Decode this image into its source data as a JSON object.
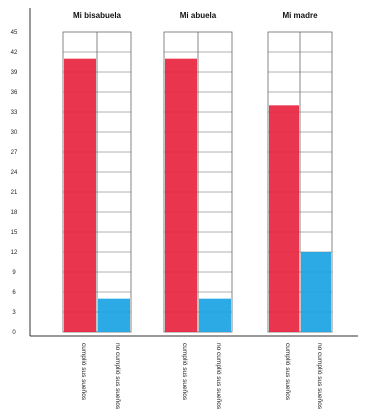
{
  "chart_data": {
    "type": "bar",
    "ylim": [
      0,
      45
    ],
    "yticks": [
      "0",
      "3",
      "6",
      "9",
      "12",
      "15",
      "18",
      "21",
      "24",
      "27",
      "30",
      "33",
      "36",
      "39",
      "42",
      "45"
    ],
    "groups": [
      {
        "title": "Mi bisabuela",
        "bars": [
          {
            "label": "cumplió sus sueños",
            "value": 41,
            "color": "#e8243f"
          },
          {
            "label": "no cumplió sus sueños",
            "value": 5,
            "color": "#1aa3e4"
          }
        ]
      },
      {
        "title": "Mi abuela",
        "bars": [
          {
            "label": "cumplió sus sueños",
            "value": 41,
            "color": "#e8243f"
          },
          {
            "label": "no cumplió sus sueños",
            "value": 5,
            "color": "#1aa3e4"
          }
        ]
      },
      {
        "title": "Mi madre",
        "bars": [
          {
            "label": "cumplió sus sueños",
            "value": 34,
            "color": "#e8243f"
          },
          {
            "label": "no cumplió sus sueños",
            "value": 12,
            "color": "#1aa3e4"
          }
        ]
      }
    ]
  }
}
